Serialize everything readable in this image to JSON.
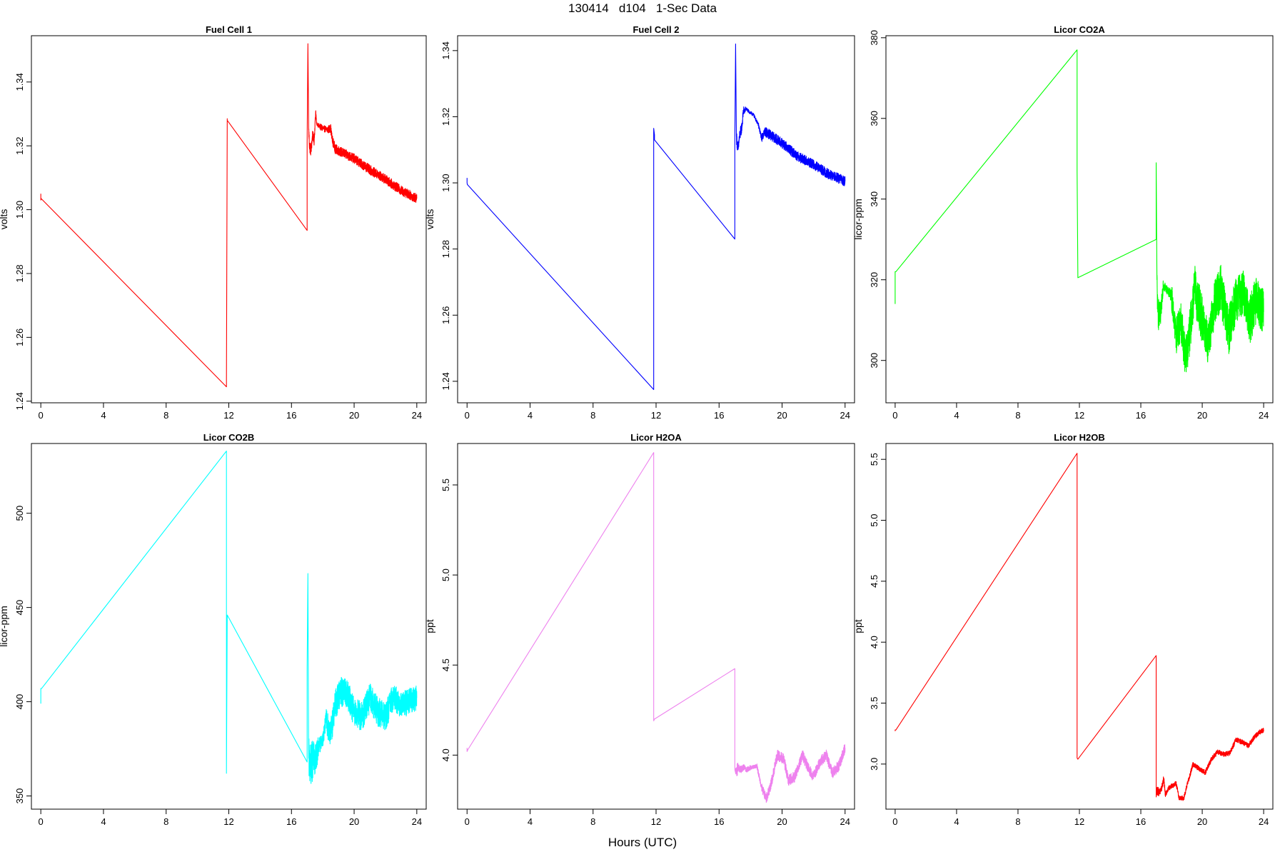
{
  "page": {
    "title": "130414   d104   1-Sec Data",
    "xlabel": "Hours (UTC)"
  },
  "chart_data": [
    {
      "type": "line",
      "title": "Fuel Cell 1",
      "ylabel": "volts",
      "color": "#ff0000",
      "xlim": [
        -0.6,
        24.6
      ],
      "ylim": [
        1.2395,
        1.3545
      ],
      "xticks": [
        0,
        4,
        8,
        12,
        16,
        20,
        24
      ],
      "yticks": [
        1.24,
        1.26,
        1.28,
        1.3,
        1.32,
        1.34
      ],
      "ytick_labels": [
        "1.24",
        "1.26",
        "1.28",
        "1.30",
        "1.32",
        "1.34"
      ],
      "x": [
        0,
        0,
        0.02,
        11.85,
        11.85,
        11.9,
        11.9,
        17.0,
        17.0,
        17.05,
        17.1,
        17.15,
        17.25,
        17.35,
        17.45,
        17.5,
        17.55,
        17.6,
        17.7,
        17.8,
        18.0,
        18.3,
        18.5,
        18.6,
        18.8,
        19.0,
        20,
        21,
        22,
        23,
        24
      ],
      "y": [
        1.305,
        1.303,
        1.3035,
        1.2445,
        1.2465,
        1.3285,
        1.328,
        1.2935,
        1.321,
        1.352,
        1.325,
        1.32,
        1.3185,
        1.3235,
        1.3215,
        1.3265,
        1.331,
        1.327,
        1.3265,
        1.326,
        1.3255,
        1.325,
        1.3255,
        1.322,
        1.319,
        1.3185,
        1.316,
        1.3125,
        1.3095,
        1.306,
        1.3035
      ],
      "noise": [
        0,
        0,
        0,
        0,
        0,
        0,
        0,
        0,
        0,
        0,
        0.002,
        0.002,
        0.002,
        0.0015,
        0.0015,
        0.001,
        0.001,
        0.0005,
        0.0005,
        0.001,
        0.001,
        0.001,
        0.0015,
        0.0015,
        0.0015,
        0.0015,
        0.0015,
        0.0015,
        0.0015,
        0.0015,
        0.0015
      ]
    },
    {
      "type": "line",
      "title": "Fuel Cell 2",
      "ylabel": "volts",
      "color": "#0000ff",
      "xlim": [
        -0.6,
        24.6
      ],
      "ylim": [
        1.2335,
        1.3445
      ],
      "xticks": [
        0,
        4,
        8,
        12,
        16,
        20,
        24
      ],
      "yticks": [
        1.24,
        1.26,
        1.28,
        1.3,
        1.32,
        1.34
      ],
      "ytick_labels": [
        "1.24",
        "1.26",
        "1.28",
        "1.30",
        "1.32",
        "1.34"
      ],
      "x": [
        0,
        0,
        0.02,
        11.85,
        11.85,
        11.9,
        11.9,
        17.0,
        17.0,
        17.05,
        17.1,
        17.2,
        17.3,
        17.45,
        17.55,
        17.6,
        17.7,
        17.9,
        18.2,
        18.5,
        18.7,
        18.9,
        19.1,
        20,
        21,
        22,
        23,
        24
      ],
      "y": [
        1.3015,
        1.3,
        1.2995,
        1.2375,
        1.3165,
        1.3145,
        1.313,
        1.283,
        1.3125,
        1.342,
        1.314,
        1.31,
        1.314,
        1.317,
        1.322,
        1.3215,
        1.3225,
        1.3215,
        1.3205,
        1.3175,
        1.3135,
        1.3155,
        1.315,
        1.312,
        1.308,
        1.3055,
        1.3025,
        1.3005
      ],
      "noise": [
        0,
        0,
        0,
        0,
        0,
        0,
        0,
        0,
        0,
        0,
        0.002,
        0.002,
        0.002,
        0.0015,
        0.0015,
        0.001,
        0.0005,
        0.0005,
        0.0005,
        0.0005,
        0.001,
        0.0015,
        0.0015,
        0.0015,
        0.0015,
        0.0015,
        0.0015,
        0.0015
      ]
    },
    {
      "type": "line",
      "title": "Licor CO2A",
      "ylabel": "licor-ppm",
      "color": "#00ff00",
      "xlim": [
        -0.6,
        24.6
      ],
      "ylim": [
        289.5,
        380.5
      ],
      "xticks": [
        0,
        4,
        8,
        12,
        16,
        20,
        24
      ],
      "yticks": [
        300,
        320,
        340,
        360,
        380
      ],
      "ytick_labels": [
        "300",
        "320",
        "340",
        "360",
        "380"
      ],
      "x": [
        0,
        0,
        0.05,
        11.85,
        11.85,
        11.9,
        11.9,
        17.0,
        17.0,
        17.05,
        17.1,
        17.2,
        17.3,
        17.45,
        17.6,
        17.8,
        18.0,
        18.3,
        18.6,
        18.9,
        19.1,
        19.5,
        20.0,
        20.4,
        20.8,
        21.2,
        21.7,
        22.2,
        22.7,
        23.1,
        23.5,
        24.0
      ],
      "y": [
        314,
        322,
        322,
        377,
        347,
        321,
        320.5,
        330,
        349,
        320,
        312,
        311,
        311,
        319,
        318,
        317,
        316,
        306,
        310,
        301,
        304,
        318,
        310,
        304,
        314,
        318,
        307,
        315,
        317,
        310,
        315,
        312
      ],
      "noise": [
        0,
        0,
        0,
        0,
        0,
        0,
        0,
        0,
        0,
        3,
        4,
        4,
        3,
        2,
        1,
        1,
        2,
        5,
        5,
        5,
        5,
        6,
        6,
        5,
        6,
        6,
        6,
        6,
        5,
        6,
        6,
        5
      ]
    },
    {
      "type": "line",
      "title": "Licor CO2B",
      "ylabel": "licor-ppm",
      "color": "#00ffff",
      "xlim": [
        -0.6,
        24.6
      ],
      "ylim": [
        343,
        537
      ],
      "xticks": [
        0,
        4,
        8,
        12,
        16,
        20,
        24
      ],
      "yticks": [
        350,
        400,
        450,
        500
      ],
      "ytick_labels": [
        "350",
        "400",
        "450",
        "500"
      ],
      "x": [
        0,
        0,
        0.05,
        11.85,
        11.85,
        11.9,
        11.9,
        17.0,
        17.0,
        17.05,
        17.1,
        17.2,
        17.35,
        17.45,
        17.55,
        17.7,
        17.85,
        18.0,
        18.2,
        18.5,
        18.8,
        19.1,
        19.5,
        20.0,
        20.5,
        21.0,
        21.5,
        22.0,
        22.5,
        23.0,
        23.5,
        24.0
      ],
      "y": [
        399,
        407,
        407,
        533,
        362,
        446,
        446,
        368,
        418,
        468,
        370,
        366,
        369,
        368,
        370,
        375,
        378,
        380,
        390,
        383,
        398,
        405,
        405,
        395,
        392,
        402,
        395,
        392,
        403,
        398,
        400,
        402
      ],
      "noise": [
        0,
        0,
        0,
        0,
        0,
        0,
        0,
        0,
        0,
        0,
        12,
        10,
        12,
        10,
        8,
        6,
        4,
        3,
        6,
        8,
        8,
        8,
        8,
        8,
        8,
        8,
        8,
        8,
        7,
        7,
        7,
        7
      ]
    },
    {
      "type": "line",
      "title": "Licor H2OA",
      "ylabel": "ppt",
      "color": "#ee82ee",
      "xlim": [
        -0.6,
        24.6
      ],
      "ylim": [
        3.7,
        5.73
      ],
      "xticks": [
        0,
        4,
        8,
        12,
        16,
        20,
        24
      ],
      "yticks": [
        4.0,
        4.5,
        5.0,
        5.5
      ],
      "ytick_labels": [
        "4.0",
        "4.5",
        "5.0",
        "5.5"
      ],
      "x": [
        0,
        0,
        0.05,
        11.85,
        11.85,
        11.9,
        11.9,
        17.0,
        17.0,
        17.05,
        17.2,
        17.4,
        17.6,
        17.8,
        18.0,
        18.4,
        18.7,
        19.0,
        19.3,
        19.7,
        20.1,
        20.4,
        20.8,
        21.3,
        21.7,
        22.0,
        22.4,
        22.8,
        23.2,
        23.6,
        24.0
      ],
      "y": [
        4.04,
        4.02,
        4.03,
        5.68,
        4.19,
        4.2,
        4.2,
        4.48,
        3.92,
        3.9,
        3.93,
        3.92,
        3.93,
        3.92,
        3.93,
        3.94,
        3.82,
        3.76,
        3.84,
        4.0,
        3.98,
        3.86,
        3.88,
        4.0,
        3.92,
        3.88,
        3.96,
        4.0,
        3.9,
        3.94,
        4.04
      ],
      "noise": [
        0,
        0,
        0,
        0,
        0,
        0,
        0,
        0,
        0,
        0.05,
        0.02,
        0.02,
        0.02,
        0.02,
        0.01,
        0.01,
        0.02,
        0.03,
        0.03,
        0.03,
        0.03,
        0.03,
        0.03,
        0.03,
        0.03,
        0.03,
        0.03,
        0.03,
        0.03,
        0.03,
        0.03
      ]
    },
    {
      "type": "line",
      "title": "Licor H2OB",
      "ylabel": "ppt",
      "color": "#ff0000",
      "xlim": [
        -0.6,
        24.6
      ],
      "ylim": [
        2.63,
        5.63
      ],
      "xticks": [
        0,
        4,
        8,
        12,
        16,
        20,
        24
      ],
      "yticks": [
        3.0,
        3.5,
        4.0,
        4.5,
        5.0,
        5.5
      ],
      "ytick_labels": [
        "3.0",
        "3.5",
        "4.0",
        "4.5",
        "5.0",
        "5.5"
      ],
      "x": [
        0,
        0,
        0.05,
        11.85,
        11.85,
        11.9,
        11.9,
        17.0,
        17.0,
        17.05,
        17.2,
        17.35,
        17.5,
        17.6,
        17.8,
        18.0,
        18.3,
        18.5,
        18.8,
        19.0,
        19.4,
        19.8,
        20.2,
        20.6,
        21.0,
        21.4,
        21.8,
        22.2,
        22.6,
        23.0,
        23.4,
        23.7,
        24.0
      ],
      "y": [
        3.27,
        3.28,
        3.28,
        5.55,
        3.05,
        3.04,
        3.04,
        3.89,
        2.73,
        2.78,
        2.77,
        2.8,
        2.88,
        2.75,
        2.8,
        2.82,
        2.84,
        2.72,
        2.72,
        2.82,
        3.0,
        2.96,
        2.93,
        3.04,
        3.1,
        3.08,
        3.09,
        3.2,
        3.18,
        3.15,
        3.22,
        3.26,
        3.28
      ],
      "noise": [
        0,
        0,
        0,
        0,
        0,
        0,
        0,
        0,
        0,
        0.04,
        0.03,
        0.03,
        0.03,
        0.02,
        0.02,
        0.02,
        0.02,
        0.02,
        0.02,
        0.02,
        0.02,
        0.02,
        0.02,
        0.02,
        0.02,
        0.02,
        0.02,
        0.02,
        0.02,
        0.02,
        0.02,
        0.02,
        0.02
      ]
    }
  ]
}
